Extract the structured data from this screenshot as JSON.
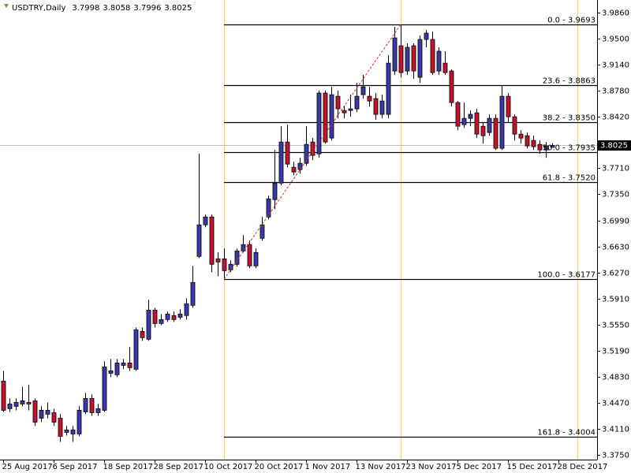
{
  "chart_data": {
    "type": "candlestick",
    "title": "USDTRY,Daily",
    "bull_color": "#3a3aa6",
    "bear_color": "#c4122f",
    "x": [
      0,
      1,
      2,
      3,
      4,
      5,
      6,
      7,
      8,
      9,
      10,
      11,
      12,
      13,
      14,
      15,
      16,
      17,
      18,
      19,
      20,
      21,
      22,
      23,
      24,
      25,
      26,
      27,
      28,
      29,
      30,
      31,
      32,
      33,
      34,
      35,
      36,
      37,
      38,
      39,
      40,
      41,
      42,
      43,
      44,
      45,
      46,
      47,
      48,
      49,
      50,
      51,
      52,
      53,
      54,
      55,
      56,
      57,
      58,
      59,
      60,
      61,
      62,
      63,
      64,
      65,
      66,
      67,
      68,
      69,
      70,
      71,
      72,
      73,
      74,
      75,
      76,
      77,
      78,
      79,
      80,
      81,
      82,
      83,
      84,
      85,
      86,
      87
    ],
    "open": [
      3.4769,
      3.4388,
      3.4421,
      3.4453,
      3.4475,
      3.4497,
      3.4257,
      3.4312,
      3.4333,
      3.4257,
      3.4061,
      3.4039,
      3.4039,
      3.4344,
      3.453,
      3.4333,
      3.4366,
      3.4878,
      3.4857,
      3.4987,
      3.502,
      3.4933,
      3.5456,
      3.5347,
      3.575,
      3.5565,
      3.562,
      3.5674,
      3.5652,
      3.5674,
      3.5816,
      3.6492,
      3.6928,
      3.7037,
      3.6459,
      3.6459,
      3.6306,
      3.6383,
      3.6568,
      3.6655,
      3.6361,
      3.6742,
      3.7037,
      3.7276,
      3.7505,
      3.8072,
      3.7723,
      3.7691,
      3.7778,
      3.8072,
      3.7909,
      3.8748,
      3.8127,
      3.8704,
      3.8508,
      3.8508,
      3.853,
      3.8726,
      3.8704,
      3.8672,
      3.8454,
      3.8454,
      3.9053,
      3.9402,
      3.9053,
      3.9402,
      3.8966,
      3.9489,
      3.9489,
      3.9053,
      3.9162,
      3.9053,
      3.8617,
      3.8312,
      3.8399,
      3.8475,
      3.829,
      3.8203,
      3.8399,
      3.7985,
      3.8704,
      3.8421,
      3.8181,
      3.8159,
      3.8094,
      3.8039,
      3.7963,
      3.7998
    ],
    "high": [
      3.4911,
      3.453,
      3.453,
      3.4693,
      3.4715,
      3.453,
      3.4421,
      3.4475,
      3.4388,
      3.4312,
      3.4148,
      3.4148,
      3.4421,
      3.4606,
      3.4584,
      3.4453,
      3.5042,
      3.5075,
      3.5075,
      3.5075,
      3.5238,
      3.5511,
      3.5511,
      3.5892,
      3.5783,
      3.5696,
      3.5729,
      3.5729,
      3.5761,
      3.5914,
      3.6361,
      3.7909,
      3.7069,
      3.7069,
      3.6546,
      3.6601,
      3.6437,
      3.6601,
      3.6786,
      3.671,
      3.6601,
      3.7037,
      3.7331,
      3.7963,
      3.829,
      3.8312,
      3.78,
      3.7854,
      3.829,
      3.8127,
      3.8781,
      3.8781,
      3.8835,
      3.8781,
      3.8563,
      3.8726,
      3.889,
      3.8999,
      3.8835,
      3.8748,
      3.8726,
      3.9271,
      3.9663,
      3.9693,
      3.9435,
      3.9435,
      3.9544,
      3.962,
      3.9598,
      3.938,
      3.9326,
      3.9075,
      3.8639,
      3.8617,
      3.8508,
      3.853,
      3.8345,
      3.8454,
      3.8454,
      3.8857,
      3.8748,
      3.8454,
      3.8236,
      3.8203,
      3.8159,
      3.8094,
      3.8072,
      3.8058
    ],
    "low": [
      3.4344,
      3.4344,
      3.4366,
      3.4421,
      3.4366,
      3.4148,
      3.4203,
      3.4257,
      3.4148,
      3.393,
      3.4017,
      3.393,
      3.4006,
      3.4312,
      3.429,
      3.429,
      3.4344,
      3.4824,
      3.4824,
      3.4933,
      3.4911,
      3.4911,
      3.5325,
      3.5325,
      3.5511,
      3.5543,
      3.5587,
      3.5587,
      3.562,
      3.562,
      3.5783,
      3.647,
      3.6895,
      3.6274,
      3.6219,
      3.6177,
      3.6274,
      3.635,
      3.6546,
      3.6328,
      3.6328,
      3.671,
      3.7004,
      3.7146,
      3.7473,
      3.7723,
      3.7614,
      3.7636,
      3.7745,
      3.7821,
      3.7854,
      3.805,
      3.8094,
      3.8399,
      3.8399,
      3.8421,
      3.8486,
      3.8672,
      3.8563,
      3.8377,
      3.8399,
      3.8399,
      3.8999,
      3.8966,
      3.8999,
      3.8944,
      3.889,
      3.938,
      3.8999,
      3.8999,
      3.8999,
      3.8563,
      3.8236,
      3.8268,
      3.829,
      3.8127,
      3.805,
      3.8159,
      3.7963,
      3.7963,
      3.8345,
      3.8094,
      3.805,
      3.7985,
      3.7963,
      3.7909,
      3.7854,
      3.7996
    ],
    "close": [
      3.4366,
      3.4453,
      3.4475,
      3.4497,
      3.4453,
      3.4203,
      3.4366,
      3.4366,
      3.4203,
      3.4006,
      3.4094,
      3.4094,
      3.4366,
      3.453,
      3.4333,
      3.4388,
      3.4966,
      3.4911,
      3.502,
      3.502,
      3.4955,
      3.5478,
      3.5369,
      3.575,
      3.5565,
      3.562,
      3.5696,
      3.562,
      3.5696,
      3.5838,
      3.6132,
      3.6928,
      3.7037,
      3.6383,
      3.6415,
      3.6295,
      3.6383,
      3.6568,
      3.6655,
      3.6361,
      3.6546,
      3.6928,
      3.7287,
      3.7505,
      3.8072,
      3.7767,
      3.7658,
      3.7778,
      3.8039,
      3.7887,
      3.8748,
      3.8072,
      3.8726,
      3.853,
      3.8475,
      3.853,
      3.8704,
      3.8835,
      3.8639,
      3.8454,
      3.8639,
      3.9162,
      3.9511,
      3.9031,
      3.938,
      3.9053,
      3.9489,
      3.9576,
      3.9031,
      3.9326,
      3.9031,
      3.8617,
      3.829,
      3.8399,
      3.8454,
      3.8181,
      3.8159,
      3.8399,
      3.7985,
      3.8704,
      3.8421,
      3.8181,
      3.8127,
      3.8018,
      3.8007,
      3.7963,
      3.8018,
      3.8025
    ],
    "xlim": [
      -0.5,
      94.125
    ],
    "ylim": [
      3.3685,
      4.0034
    ],
    "xticks": [
      {
        "value": 0,
        "label": "25 Aug 2017"
      },
      {
        "value": 8,
        "label": "6 Sep 2017"
      },
      {
        "value": 16,
        "label": "18 Sep 2017"
      },
      {
        "value": 24,
        "label": "28 Sep 2017"
      },
      {
        "value": 32,
        "label": "10 Oct 2017"
      },
      {
        "value": 40,
        "label": "20 Oct 2017"
      },
      {
        "value": 48,
        "label": "1 Nov 2017"
      },
      {
        "value": 56,
        "label": "13 Nov 2017"
      },
      {
        "value": 64,
        "label": "23 Nov 2017"
      },
      {
        "value": 72,
        "label": "5 Dec 2017"
      },
      {
        "value": 80,
        "label": "15 Dec 2017"
      },
      {
        "value": 88,
        "label": "28 Dec 2017"
      }
    ],
    "yticks": [
      {
        "value": 3.986,
        "label": "3.9860"
      },
      {
        "value": 3.95,
        "label": "3.9500"
      },
      {
        "value": 3.914,
        "label": "3.9140"
      },
      {
        "value": 3.878,
        "label": "3.8780"
      },
      {
        "value": 3.842,
        "label": "3.8420"
      },
      {
        "value": 3.771,
        "label": "3.7710"
      },
      {
        "value": 3.735,
        "label": "3.7350"
      },
      {
        "value": 3.699,
        "label": "3.6990"
      },
      {
        "value": 3.663,
        "label": "3.6630"
      },
      {
        "value": 3.627,
        "label": "3.6270"
      },
      {
        "value": 3.591,
        "label": "3.5910"
      },
      {
        "value": 3.555,
        "label": "3.5550"
      },
      {
        "value": 3.519,
        "label": "3.5190"
      },
      {
        "value": 3.483,
        "label": "3.4830"
      },
      {
        "value": 3.447,
        "label": "3.4470"
      },
      {
        "value": 3.411,
        "label": "3.4110"
      },
      {
        "value": 3.375,
        "label": "3.3750"
      }
    ],
    "fibonacci": {
      "x": [
        35,
        63
      ],
      "line_color": "#000000",
      "trend_color": "#d03030",
      "levels": [
        {
          "value": 3.9693,
          "label": "0.0 - 3.9693"
        },
        {
          "value": 3.8863,
          "label": "23.6 - 3.8863"
        },
        {
          "value": 3.835,
          "label": "38.2 - 3.8350"
        },
        {
          "value": 3.7935,
          "label": "50.0 - 3.7935"
        },
        {
          "value": 3.752,
          "label": "61.8 - 3.7520"
        },
        {
          "value": 3.6177,
          "label": "100.0 - 3.6177"
        },
        {
          "value": 3.4004,
          "label": "161.8 - 3.4004"
        }
      ]
    },
    "vertical_lines": {
      "x": [
        35,
        63,
        91
      ],
      "color": "#f2d64b"
    },
    "bid_line_color": "#c0c0c0"
  }
}
